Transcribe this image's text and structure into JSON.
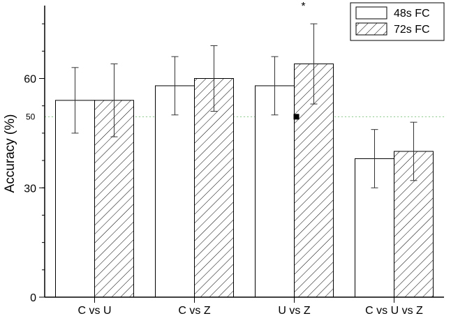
{
  "chart_data": {
    "type": "bar",
    "categories": [
      "C vs U",
      "C vs Z",
      "U vs Z",
      "C vs U vs Z"
    ],
    "series": [
      {
        "name": "48s FC",
        "values": [
          54,
          58,
          58,
          38
        ],
        "error": [
          [
            45,
            63
          ],
          [
            50,
            66
          ],
          [
            50,
            66
          ],
          [
            30,
            46
          ]
        ],
        "pattern": "none"
      },
      {
        "name": "72s FC",
        "values": [
          54,
          60,
          64,
          40
        ],
        "error": [
          [
            44,
            64
          ],
          [
            51,
            69
          ],
          [
            53,
            75
          ],
          [
            32,
            48
          ]
        ],
        "pattern": "hatch"
      }
    ],
    "ylabel": "Accuracy (%)",
    "xlabel": "",
    "ylim": [
      0,
      80
    ],
    "yticks": [
      0,
      30,
      60
    ],
    "reference_line": {
      "value": 49.5,
      "label": "50",
      "color": "#7fd37f"
    },
    "marker_point": {
      "category": "U vs Z",
      "series": "72s FC",
      "value": 49.5
    },
    "annotation": {
      "text": "*",
      "category": "U vs Z",
      "series": "72s FC"
    },
    "legend": "top-right",
    "grid": false
  }
}
